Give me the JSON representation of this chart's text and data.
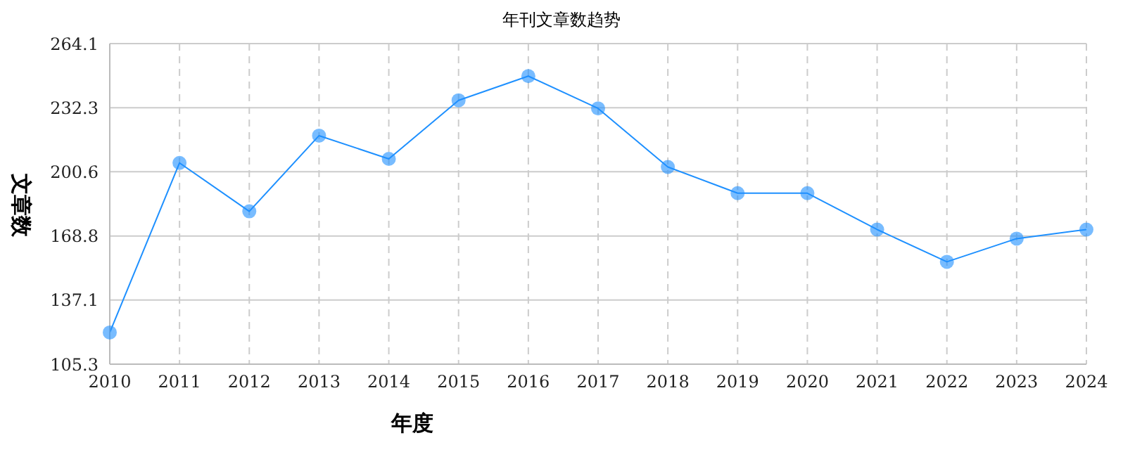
{
  "chart_data": {
    "type": "line",
    "title": "年刊文章数趋势",
    "xlabel": "年度",
    "ylabel": "文章数",
    "categories": [
      "2010",
      "2011",
      "2012",
      "2013",
      "2014",
      "2015",
      "2016",
      "2017",
      "2018",
      "2019",
      "2020",
      "2021",
      "2022",
      "2023",
      "2024"
    ],
    "series": [
      {
        "color": "#1e90ff",
        "values": [
          121,
          205,
          181,
          218.5,
          207,
          236,
          248,
          232,
          203,
          190,
          190,
          172,
          156,
          167.5,
          172
        ]
      }
    ],
    "ylim": [
      105.3,
      264.1
    ],
    "yticks": [
      105.3,
      137.1,
      168.8,
      200.6,
      232.3,
      264.1
    ],
    "grid": true,
    "marker": "circle",
    "line_style": "solid"
  }
}
